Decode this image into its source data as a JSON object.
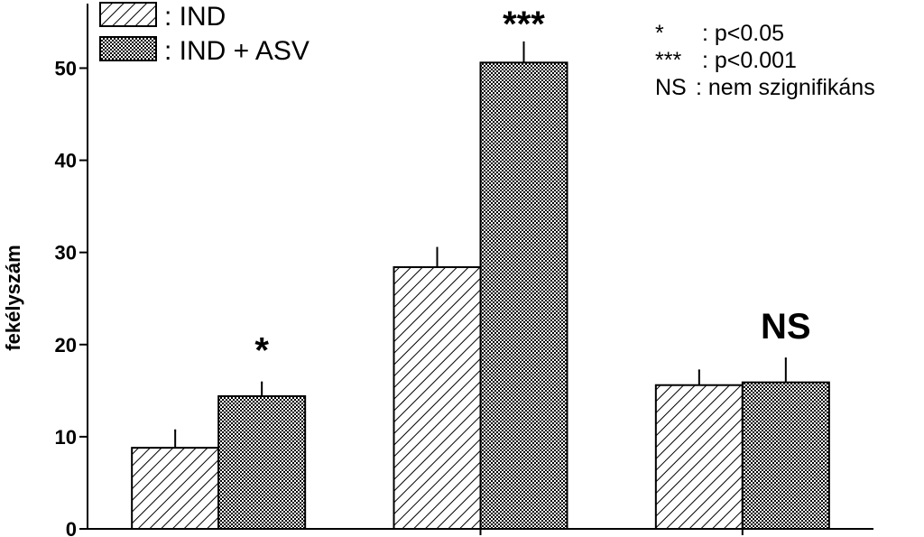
{
  "colors": {
    "ink": "#000000",
    "background": "#ffffff"
  },
  "legend": {
    "items": [
      {
        "label": ": IND",
        "pattern": "hatch"
      },
      {
        "label": ": IND + ASV",
        "pattern": "crosshatch"
      }
    ]
  },
  "notes": [
    {
      "key": "*",
      "text": ": p<0.05"
    },
    {
      "key": "***",
      "text": ": p<0.001"
    },
    {
      "key": "NS",
      "text": ": nem szignifikáns"
    }
  ],
  "chart_data": {
    "type": "bar",
    "ylabel": "fekélyszám",
    "ylim": [
      0,
      57
    ],
    "yticks": [
      0,
      10,
      20,
      30,
      40,
      50
    ],
    "yticklabels": [
      "0",
      "10",
      "20",
      "30",
      "40",
      "50"
    ],
    "group_count": 3,
    "grid": false,
    "legend_position": "top-left",
    "series": [
      {
        "pattern": "hatch",
        "values": [
          8.8,
          28.4,
          15.6
        ],
        "errors": [
          1.9,
          2.1,
          1.6
        ]
      },
      {
        "pattern": "crosshatch",
        "values": [
          14.4,
          50.6,
          15.9
        ],
        "errors": [
          1.5,
          2.2,
          2.6
        ]
      }
    ],
    "significance": [
      "*",
      "***",
      "NS"
    ]
  }
}
